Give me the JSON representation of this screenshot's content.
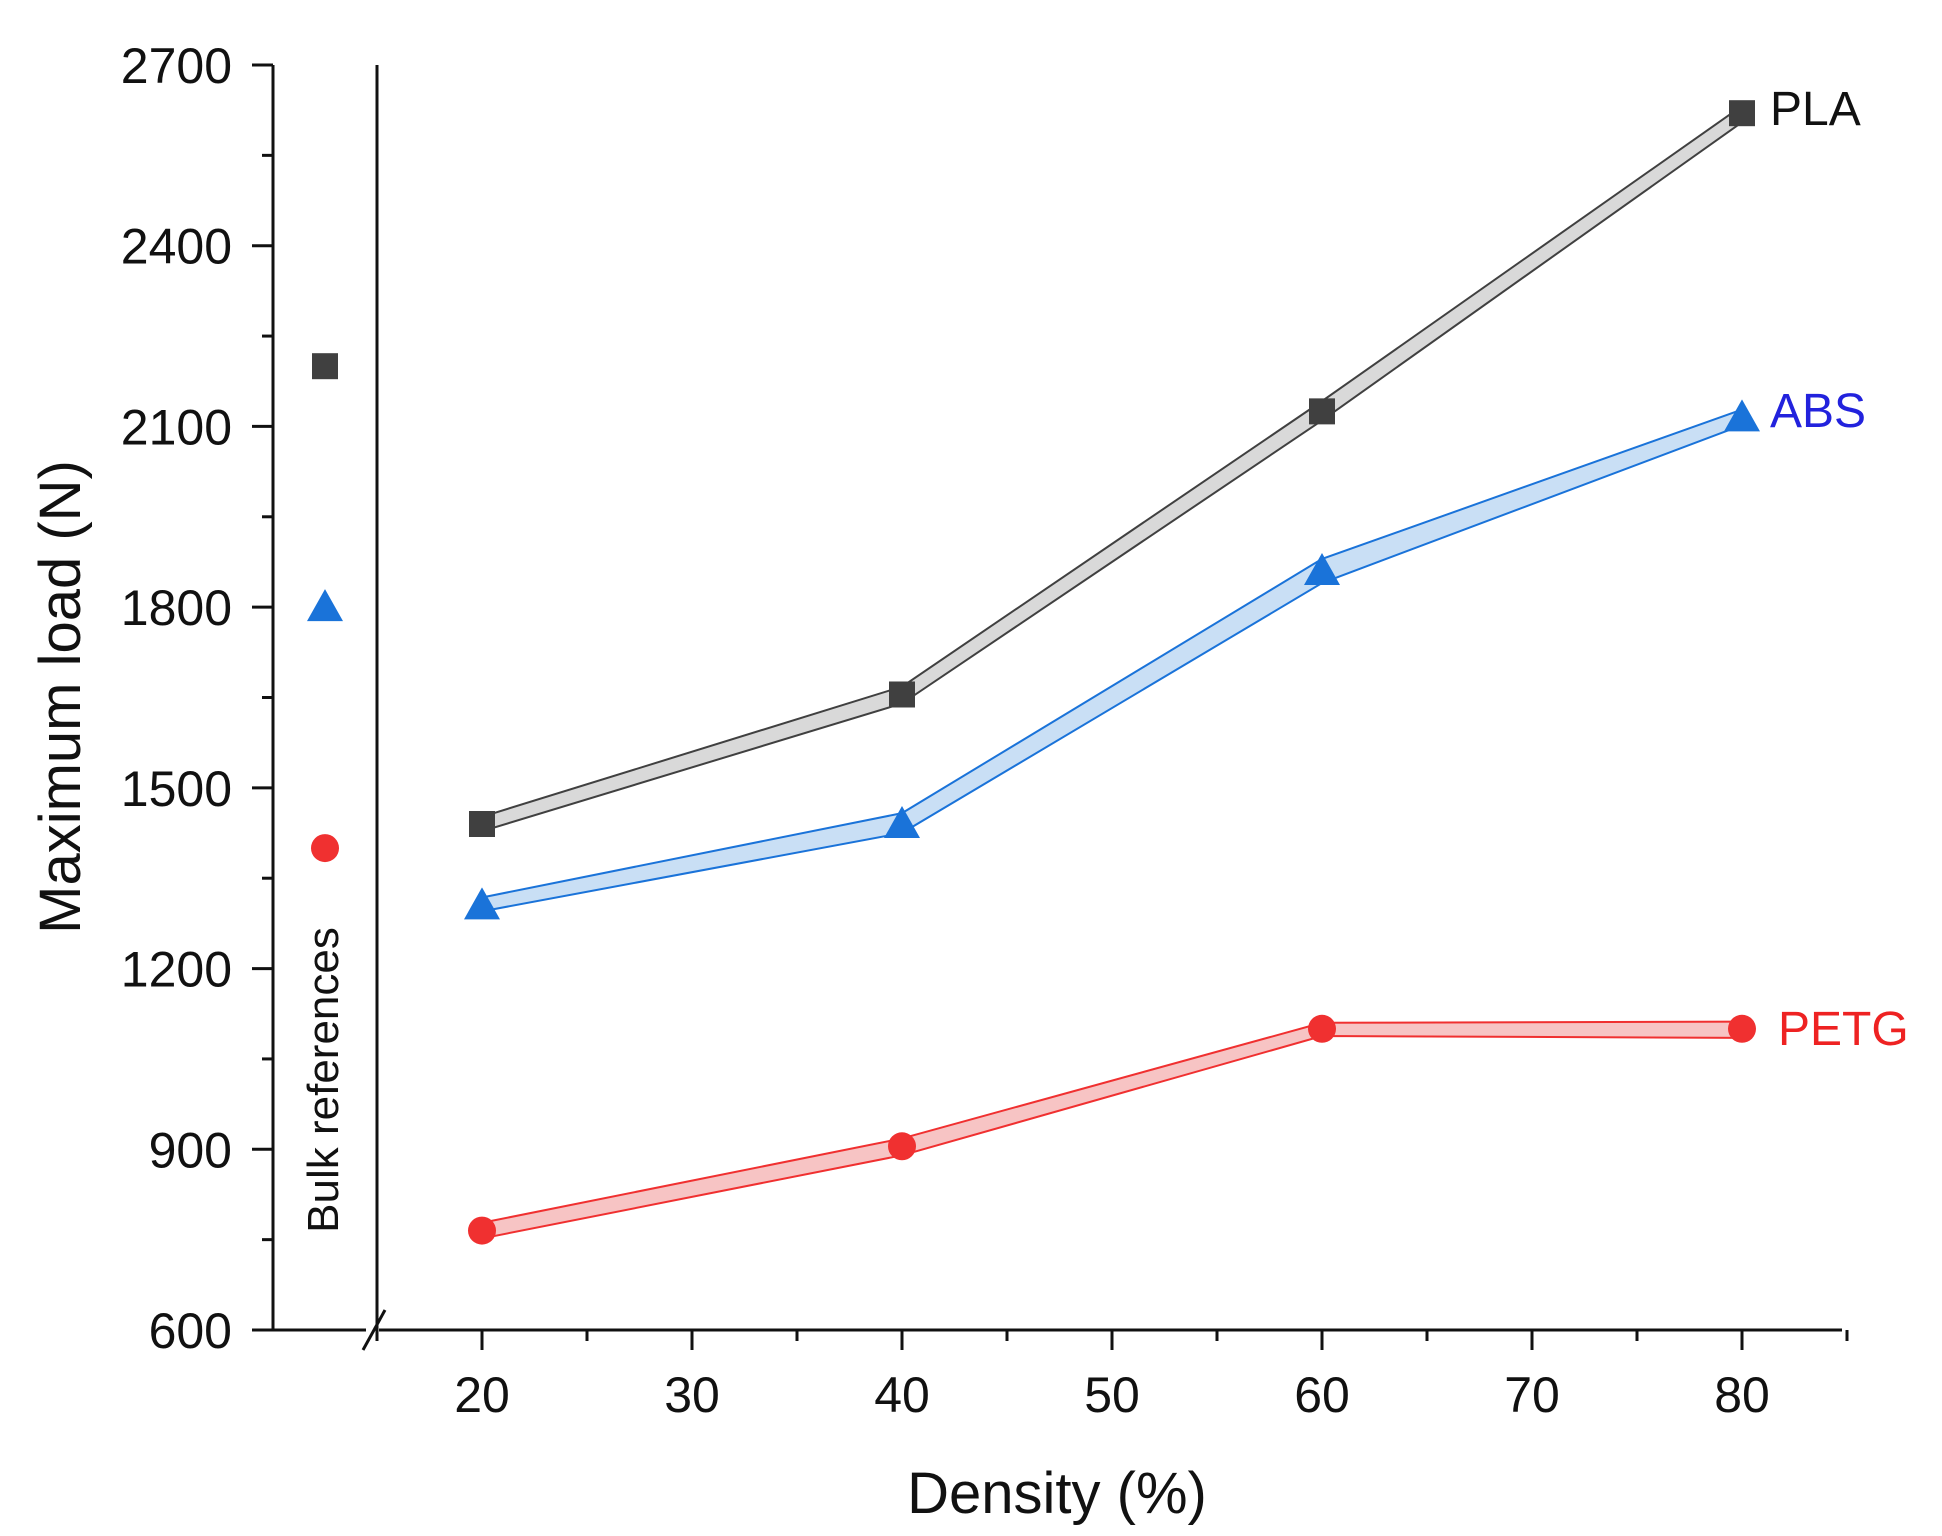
{
  "chart_data": {
    "type": "line",
    "xlabel": "Density (%)",
    "ylabel": "Maximum load (N)",
    "xlim": [
      10,
      85
    ],
    "ylim": [
      600,
      2700
    ],
    "x_ticks": [
      20,
      30,
      40,
      50,
      60,
      70,
      80
    ],
    "y_ticks": [
      600,
      900,
      1200,
      1500,
      1800,
      2100,
      2400,
      2700
    ],
    "x": [
      20,
      40,
      60,
      80
    ],
    "bulk_label": "Bulk references",
    "series": [
      {
        "name": "PLA",
        "marker": "square",
        "color": "#404040",
        "band_color": "#d9d9d9",
        "values": [
          1440,
          1655,
          2125,
          2620
        ],
        "upper": [
          1452,
          1668,
          2142,
          2632
        ],
        "lower": [
          1428,
          1640,
          2110,
          2605
        ],
        "bulk_value": 2200
      },
      {
        "name": "ABS",
        "marker": "triangle",
        "color": "#1a73d9",
        "band_color": "#c9dff5",
        "values": [
          1305,
          1440,
          1860,
          2115
        ],
        "upper": [
          1318,
          1458,
          1880,
          2128
        ],
        "lower": [
          1295,
          1425,
          1840,
          2102
        ],
        "bulk_value": 1800
      },
      {
        "name": "PETG",
        "marker": "circle",
        "color": "#f03030",
        "band_color": "#f7c4c4",
        "values": [
          765,
          905,
          1100,
          1100
        ],
        "upper": [
          778,
          918,
          1110,
          1112
        ],
        "lower": [
          752,
          890,
          1088,
          1085
        ],
        "bulk_value": 1400
      }
    ]
  }
}
